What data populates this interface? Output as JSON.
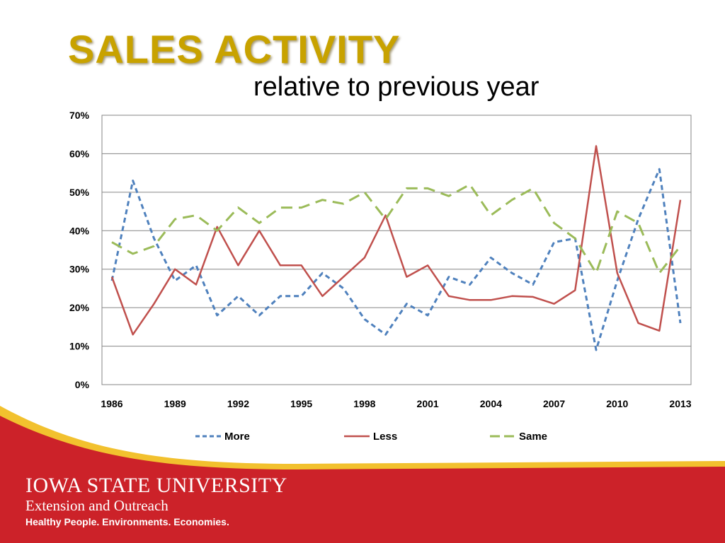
{
  "slide": {
    "title": "SALES ACTIVITY",
    "subtitle": "relative to previous year"
  },
  "footer": {
    "university": "IOWA STATE UNIVERSITY",
    "extension": "Extension and Outreach",
    "tagline": "Healthy People. Environments. Economies."
  },
  "colors": {
    "title": "#c8a200",
    "more": "#4f81bd",
    "less": "#c0504d",
    "same": "#9bbb59",
    "footer_red": "#cc2229",
    "footer_gold": "#f2c12e"
  },
  "chart_data": {
    "type": "line",
    "title": "",
    "xlabel": "",
    "ylabel": "",
    "ylim": [
      0,
      70
    ],
    "yticks": [
      "0%",
      "10%",
      "20%",
      "30%",
      "40%",
      "50%",
      "60%",
      "70%"
    ],
    "xticks": [
      "1986",
      "1989",
      "1992",
      "1995",
      "1998",
      "2001",
      "2004",
      "2007",
      "2010",
      "2013"
    ],
    "x": [
      1986,
      1987,
      1988,
      1989,
      1990,
      1991,
      1992,
      1993,
      1994,
      1995,
      1996,
      1997,
      1998,
      1999,
      2000,
      2001,
      2002,
      2003,
      2004,
      2005,
      2006,
      2007,
      2008,
      2009,
      2010,
      2011,
      2012,
      2013
    ],
    "grid": "horizontal",
    "legend": "bottom",
    "series": [
      {
        "name": "More",
        "style": "dashed",
        "values": [
          27,
          53,
          38,
          27,
          31,
          18,
          23,
          18,
          23,
          23,
          29,
          25,
          17,
          13,
          21,
          18,
          28,
          26,
          33,
          29,
          26,
          37,
          38,
          9,
          27,
          43,
          56,
          16
        ]
      },
      {
        "name": "Less",
        "style": "solid",
        "values": [
          28,
          13,
          21,
          30,
          26,
          41,
          31,
          40,
          31,
          31,
          23,
          28,
          33,
          44,
          28,
          31,
          23,
          22,
          22,
          23,
          22.8,
          21,
          24.5,
          62,
          29,
          16,
          14,
          48
        ]
      },
      {
        "name": "Same",
        "style": "longdash",
        "values": [
          37,
          34,
          36,
          43,
          44,
          40,
          46,
          42,
          46,
          46,
          48,
          47,
          50,
          43,
          51,
          51,
          49,
          52,
          44,
          48,
          51,
          42,
          38,
          29,
          45,
          42,
          29,
          36
        ]
      }
    ]
  }
}
